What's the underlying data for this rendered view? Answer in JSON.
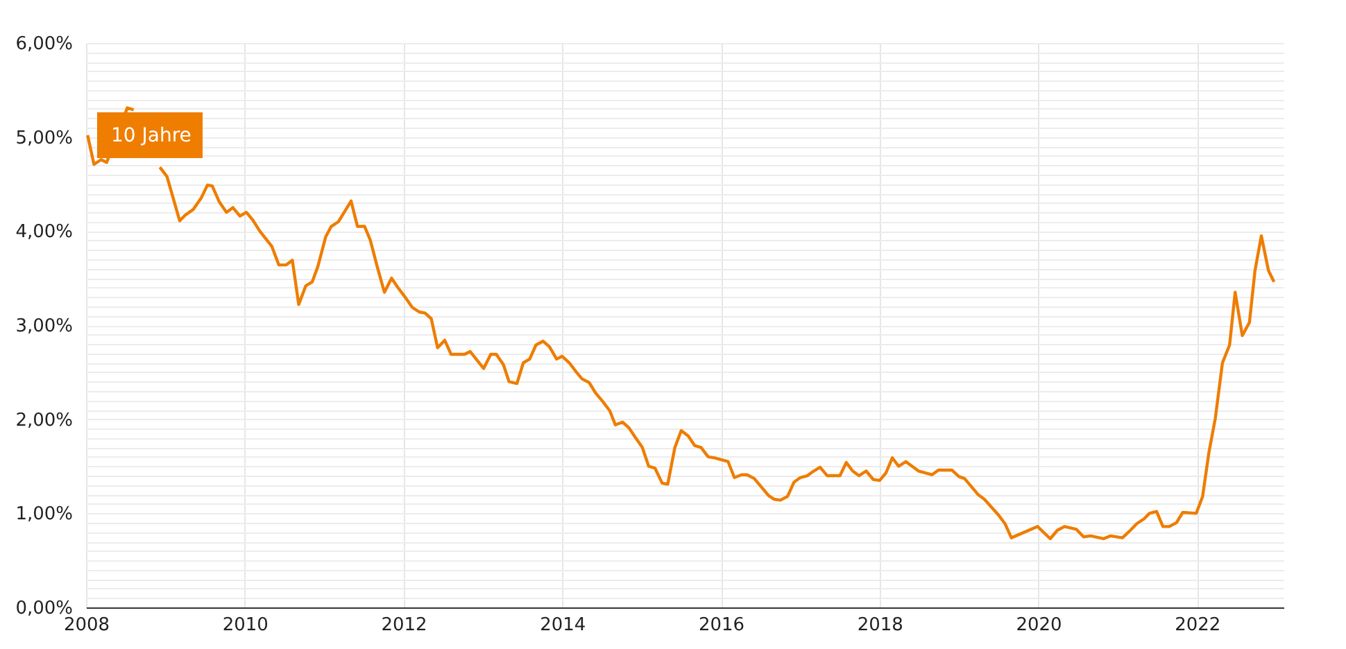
{
  "chart_data": {
    "type": "line",
    "xlim": [
      2008,
      2023.09
    ],
    "xticks": [
      2008,
      2010,
      2012,
      2014,
      2016,
      2018,
      2020,
      2022
    ],
    "ylim": [
      0,
      6
    ],
    "yticks": [
      {
        "value": 0,
        "label": "0,00%"
      },
      {
        "value": 0.1,
        "label": null
      },
      {
        "value": 0.2,
        "label": null
      },
      {
        "value": 0.3,
        "label": null
      },
      {
        "value": 0.4,
        "label": null
      },
      {
        "value": 0.5,
        "label": null
      },
      {
        "value": 0.6,
        "label": null
      },
      {
        "value": 0.7,
        "label": null
      },
      {
        "value": 0.8,
        "label": null
      },
      {
        "value": 0.9,
        "label": null
      },
      {
        "value": 1,
        "label": "1,00%"
      },
      {
        "value": 1.1,
        "label": null
      },
      {
        "value": 1.2,
        "label": null
      },
      {
        "value": 1.3,
        "label": null
      },
      {
        "value": 1.4,
        "label": null
      },
      {
        "value": 1.5,
        "label": null
      },
      {
        "value": 1.6,
        "label": null
      },
      {
        "value": 1.7,
        "label": null
      },
      {
        "value": 1.8,
        "label": null
      },
      {
        "value": 1.9,
        "label": null
      },
      {
        "value": 2,
        "label": "2,00%"
      },
      {
        "value": 2.1,
        "label": null
      },
      {
        "value": 2.2,
        "label": null
      },
      {
        "value": 2.3,
        "label": null
      },
      {
        "value": 2.4,
        "label": null
      },
      {
        "value": 2.5,
        "label": null
      },
      {
        "value": 2.6,
        "label": null
      },
      {
        "value": 2.7,
        "label": null
      },
      {
        "value": 2.8,
        "label": null
      },
      {
        "value": 2.9,
        "label": null
      },
      {
        "value": 3,
        "label": "3,00%"
      },
      {
        "value": 3.1,
        "label": null
      },
      {
        "value": 3.2,
        "label": null
      },
      {
        "value": 3.3,
        "label": null
      },
      {
        "value": 3.4,
        "label": null
      },
      {
        "value": 3.5,
        "label": null
      },
      {
        "value": 3.6,
        "label": null
      },
      {
        "value": 3.7,
        "label": null
      },
      {
        "value": 3.8,
        "label": null
      },
      {
        "value": 3.9,
        "label": null
      },
      {
        "value": 4,
        "label": "4,00%"
      },
      {
        "value": 4.1,
        "label": null
      },
      {
        "value": 4.2,
        "label": null
      },
      {
        "value": 4.3,
        "label": null
      },
      {
        "value": 4.4,
        "label": null
      },
      {
        "value": 4.5,
        "label": null
      },
      {
        "value": 4.6,
        "label": null
      },
      {
        "value": 4.7,
        "label": null
      },
      {
        "value": 4.8,
        "label": null
      },
      {
        "value": 4.9,
        "label": null
      },
      {
        "value": 5,
        "label": "5,00%"
      },
      {
        "value": 5.1,
        "label": null
      },
      {
        "value": 5.2,
        "label": null
      },
      {
        "value": 5.3,
        "label": null
      },
      {
        "value": 5.4,
        "label": null
      },
      {
        "value": 5.5,
        "label": null
      },
      {
        "value": 5.6,
        "label": null
      },
      {
        "value": 5.7,
        "label": null
      },
      {
        "value": 5.8,
        "label": null
      },
      {
        "value": 5.9,
        "label": null
      },
      {
        "value": 6,
        "label": "6,00%"
      }
    ],
    "grid": true,
    "legend": "top left",
    "series": [
      {
        "name": "10 Jahre",
        "color": "#ee7d00",
        "x": [
          2008.02,
          2008.1,
          2008.19,
          2008.26,
          2008.52,
          2008.6,
          2008.84,
          2008.93,
          2009.02,
          2009.18,
          2009.25,
          2009.35,
          2009.45,
          2009.53,
          2009.59,
          2009.68,
          2009.77,
          2009.85,
          2009.94,
          2010.02,
          2010.1,
          2010.19,
          2010.34,
          2010.43,
          2010.52,
          2010.6,
          2010.68,
          2010.77,
          2010.85,
          2010.92,
          2011.02,
          2011.09,
          2011.18,
          2011.26,
          2011.34,
          2011.42,
          2011.51,
          2011.58,
          2011.67,
          2011.76,
          2011.85,
          2011.93,
          2012.02,
          2012.11,
          2012.2,
          2012.27,
          2012.35,
          2012.43,
          2012.52,
          2012.6,
          2012.77,
          2012.84,
          2013.01,
          2013.1,
          2013.17,
          2013.26,
          2013.33,
          2013.43,
          2013.51,
          2013.59,
          2013.67,
          2013.76,
          2013.84,
          2013.93,
          2014.0,
          2014.09,
          2014.18,
          2014.25,
          2014.34,
          2014.42,
          2014.51,
          2014.6,
          2014.67,
          2014.76,
          2014.84,
          2014.92,
          2015.01,
          2015.09,
          2015.17,
          2015.26,
          2015.33,
          2015.42,
          2015.5,
          2015.59,
          2015.67,
          2015.75,
          2015.84,
          2015.92,
          2016.09,
          2016.17,
          2016.26,
          2016.33,
          2016.42,
          2016.51,
          2016.6,
          2016.67,
          2016.75,
          2016.84,
          2016.92,
          2017.0,
          2017.09,
          2017.17,
          2017.25,
          2017.34,
          2017.5,
          2017.58,
          2017.66,
          2017.74,
          2017.83,
          2017.92,
          2018.0,
          2018.08,
          2018.16,
          2018.24,
          2018.33,
          2018.49,
          2018.66,
          2018.74,
          2018.91,
          2019.0,
          2019.07,
          2019.24,
          2019.32,
          2019.49,
          2019.58,
          2019.66,
          2019.99,
          2020.15,
          2020.24,
          2020.33,
          2020.48,
          2020.57,
          2020.66,
          2020.82,
          2020.91,
          2021.06,
          2021.16,
          2021.24,
          2021.33,
          2021.4,
          2021.49,
          2021.57,
          2021.65,
          2021.74,
          2021.82,
          2021.99,
          2022.07,
          2022.15,
          2022.23,
          2022.32,
          2022.41,
          2022.48,
          2022.57,
          2022.66,
          2022.73,
          2022.81,
          2022.9,
          2022.97
        ],
        "values": [
          5.02,
          4.71,
          4.76,
          4.73,
          5.31,
          5.29,
          null,
          4.68,
          4.58,
          4.11,
          4.17,
          4.23,
          4.35,
          4.49,
          4.48,
          4.31,
          4.2,
          4.25,
          4.16,
          4.2,
          4.12,
          4.0,
          3.84,
          3.64,
          3.64,
          3.69,
          3.22,
          3.42,
          3.46,
          3.62,
          3.94,
          4.05,
          4.1,
          4.21,
          4.32,
          4.05,
          4.05,
          3.91,
          3.62,
          3.35,
          3.5,
          3.4,
          3.3,
          3.19,
          3.14,
          3.13,
          3.07,
          2.76,
          2.84,
          2.69,
          2.69,
          2.72,
          2.54,
          2.69,
          2.69,
          2.58,
          2.4,
          2.38,
          2.6,
          2.64,
          2.79,
          2.83,
          2.77,
          2.64,
          2.67,
          2.6,
          2.5,
          2.43,
          2.39,
          2.28,
          2.19,
          2.09,
          1.94,
          1.97,
          1.91,
          1.81,
          1.7,
          1.5,
          1.48,
          1.32,
          1.31,
          1.7,
          1.88,
          1.82,
          1.72,
          1.7,
          1.6,
          1.59,
          1.55,
          1.38,
          1.41,
          1.41,
          1.37,
          1.28,
          1.19,
          1.15,
          1.14,
          1.18,
          1.33,
          1.38,
          1.4,
          1.45,
          1.49,
          1.4,
          1.4,
          1.54,
          1.45,
          1.4,
          1.45,
          1.36,
          1.35,
          1.43,
          1.59,
          1.5,
          1.55,
          1.45,
          1.41,
          1.46,
          1.46,
          1.39,
          1.37,
          1.2,
          1.15,
          0.99,
          0.89,
          0.74,
          0.86,
          0.73,
          0.82,
          0.86,
          0.83,
          0.75,
          0.76,
          0.73,
          0.76,
          0.74,
          0.82,
          0.89,
          0.94,
          1.0,
          1.02,
          0.86,
          0.86,
          0.9,
          1.01,
          1.0,
          1.18,
          1.65,
          2.01,
          2.6,
          2.79,
          3.35,
          2.89,
          3.03,
          3.58,
          3.95,
          3.58,
          3.46
        ]
      }
    ]
  }
}
